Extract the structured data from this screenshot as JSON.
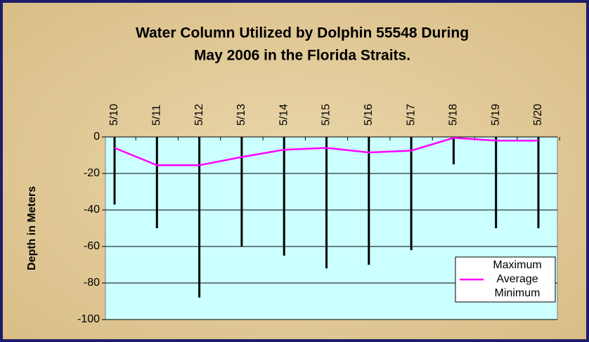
{
  "chart_data": {
    "type": "high-low-average",
    "title": "Water Column Utilized by Dolphin 55548 During",
    "subtitle": "May 2006 in the Florida Straits.",
    "y_label": "Depth in Meters",
    "categories": [
      "5/10",
      "5/11",
      "5/12",
      "5/13",
      "5/14",
      "5/15",
      "5/16",
      "5/17",
      "5/18",
      "5/19",
      "5/20"
    ],
    "series": [
      {
        "name": "Maximum",
        "color": "#000000",
        "values": [
          0,
          0,
          0,
          0,
          0,
          0,
          0,
          0,
          0,
          0,
          0
        ]
      },
      {
        "name": "Average",
        "color": "#ff00ff",
        "values": [
          -6,
          -15.5,
          -15.5,
          -11,
          -7,
          -6,
          -8.5,
          -7.5,
          -0.5,
          -2,
          -2
        ]
      },
      {
        "name": "Minimum",
        "color": "#000000",
        "values": [
          -37,
          -50,
          -88,
          -60,
          -65,
          -72,
          -70,
          -62,
          -15,
          -50,
          -50
        ]
      }
    ],
    "ylim": [
      -100,
      0
    ],
    "yticks": [
      -100,
      -80,
      -60,
      -40,
      -20,
      0
    ],
    "grid": true,
    "legend": "lower right"
  }
}
